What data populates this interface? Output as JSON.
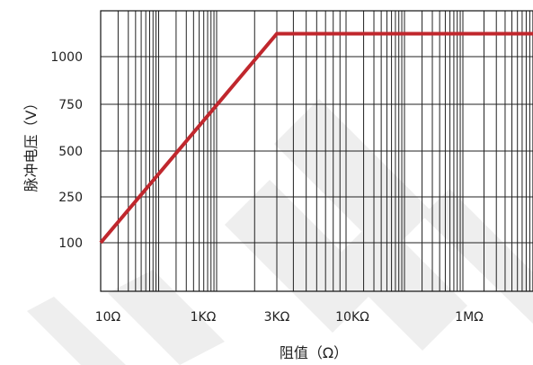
{
  "chart_data": {
    "type": "line",
    "xlabel": "阻值（Ω）",
    "ylabel": "脉冲电压（V）",
    "x_scale": "log",
    "y_scale": "piecewise-linear",
    "grid": true,
    "legend": "none",
    "xlim": [
      10,
      10000000
    ],
    "ylim": [
      0,
      1100
    ],
    "x_ticks": [
      {
        "value": 10,
        "label": "10Ω"
      },
      {
        "value": 1000,
        "label": "1KΩ"
      },
      {
        "value": 3000,
        "label": "3KΩ"
      },
      {
        "value": 10000,
        "label": "10KΩ"
      },
      {
        "value": 1000000,
        "label": "1MΩ"
      }
    ],
    "y_ticks": [
      {
        "value": 100,
        "label": "100"
      },
      {
        "value": 250,
        "label": "250"
      },
      {
        "value": 500,
        "label": "500"
      },
      {
        "value": 750,
        "label": "750"
      },
      {
        "value": 1000,
        "label": "1000"
      }
    ],
    "series": [
      {
        "color": "#c0272d",
        "x": [
          10,
          3000,
          10000000
        ],
        "y": [
          100,
          1050,
          1050
        ]
      }
    ]
  }
}
